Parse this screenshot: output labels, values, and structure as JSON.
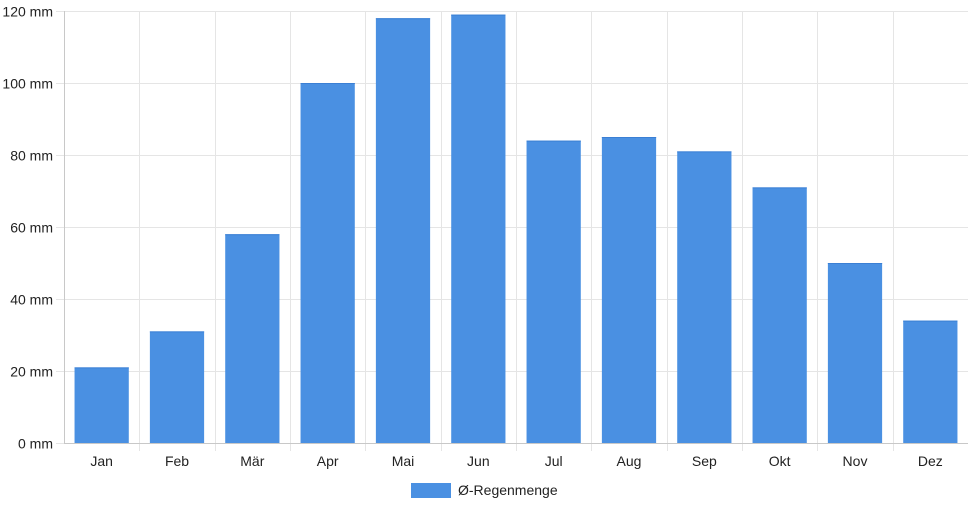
{
  "chart_data": {
    "type": "bar",
    "categories": [
      "Jan",
      "Feb",
      "Mär",
      "Apr",
      "Mai",
      "Jun",
      "Jul",
      "Aug",
      "Sep",
      "Okt",
      "Nov",
      "Dez"
    ],
    "series": [
      {
        "name": "Ø-Regenmenge",
        "values": [
          21,
          31,
          58,
          100,
          118,
          119,
          84,
          85,
          81,
          71,
          50,
          34
        ],
        "color": "#4a90e2"
      }
    ],
    "title": "",
    "xlabel": "",
    "ylabel": "",
    "ylim": [
      0,
      120
    ],
    "y_ticks": [
      "0 mm",
      "20 mm",
      "40 mm",
      "60 mm",
      "80 mm",
      "100 mm",
      "120 mm"
    ],
    "grid": true,
    "legend_position": "bottom-center",
    "gridline_color": "#e5e5e5",
    "axis_color": "#c8c8c8"
  }
}
